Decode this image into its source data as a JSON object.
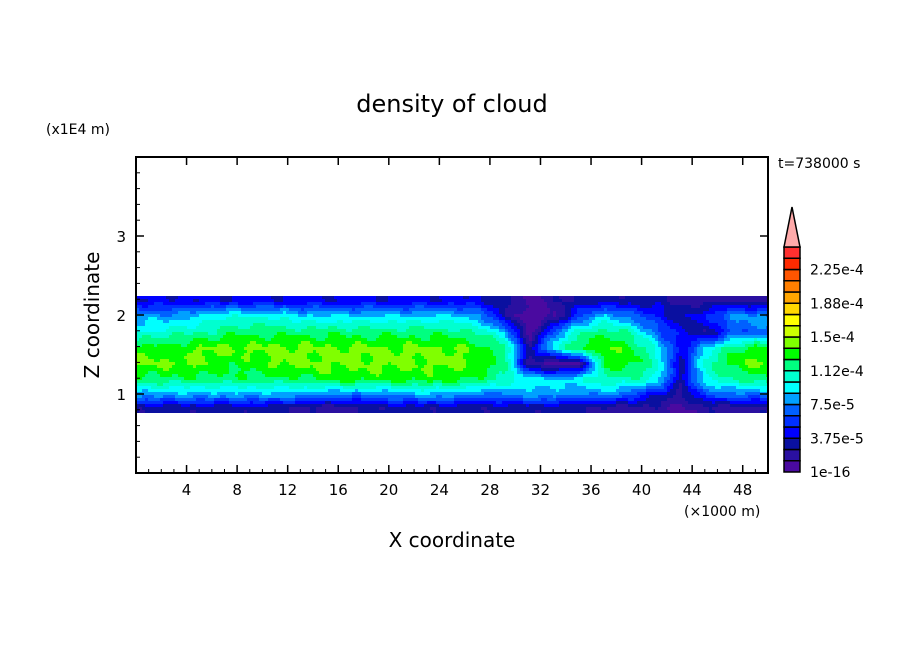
{
  "chart_data": {
    "type": "heatmap",
    "title": "density of cloud",
    "xlabel": "X coordinate",
    "ylabel": "Z coordinate",
    "x_unit_label": "(×1000 m)",
    "y_unit_label": "(x1E4 m)",
    "time_label": "t=738000 s",
    "xlim": [
      0,
      50
    ],
    "ylim": [
      0,
      4
    ],
    "x_ticks": [
      "4",
      "8",
      "12",
      "16",
      "20",
      "24",
      "28",
      "32",
      "36",
      "40",
      "44",
      "48"
    ],
    "x_tick_values": [
      4,
      8,
      12,
      16,
      20,
      24,
      28,
      32,
      36,
      40,
      44,
      48
    ],
    "y_ticks": [
      "1",
      "2",
      "3"
    ],
    "y_tick_values": [
      1,
      2,
      3
    ],
    "field_units_scale": 1e-05,
    "field_extent_z": [
      0.78,
      2.24
    ],
    "field_x": [
      1,
      3,
      5,
      7,
      9,
      11,
      13,
      15,
      17,
      19,
      21,
      23,
      25,
      27,
      29,
      31,
      33,
      35,
      37,
      39,
      41,
      43,
      45,
      47,
      49
    ],
    "field_z": [
      2.2,
      2.0,
      1.8,
      1.6,
      1.4,
      1.2,
      1.0,
      0.85
    ],
    "field_values_approx": [
      [
        4,
        4,
        4,
        4,
        4,
        4,
        4,
        4,
        4,
        4,
        4,
        4,
        4,
        4,
        3,
        1,
        2,
        3,
        3,
        3,
        3,
        2,
        2,
        2,
        2
      ],
      [
        8,
        8,
        9,
        10,
        10,
        10,
        9,
        9,
        9,
        9,
        9,
        9,
        9,
        8,
        3,
        0,
        1,
        6,
        9,
        7,
        5,
        3,
        5,
        8,
        8
      ],
      [
        10,
        11,
        11,
        12,
        12,
        12,
        12,
        12,
        12,
        12,
        12,
        12,
        12,
        11,
        9,
        0,
        7,
        11,
        12,
        11,
        7,
        4,
        2,
        6,
        7
      ],
      [
        13,
        13,
        14,
        14,
        14,
        14,
        14,
        14,
        14,
        14,
        14,
        14,
        14,
        13,
        12,
        3,
        10,
        13,
        14,
        13,
        10,
        4,
        9,
        12,
        13
      ],
      [
        14,
        14,
        14,
        13,
        13,
        14,
        14,
        14,
        14,
        14,
        14,
        14,
        14,
        14,
        12,
        2,
        0,
        1,
        13,
        13,
        11,
        3,
        11,
        13,
        14
      ],
      [
        12,
        12,
        12,
        12,
        12,
        12,
        12,
        13,
        13,
        13,
        13,
        13,
        13,
        12,
        11,
        10,
        9,
        10,
        11,
        11,
        10,
        3,
        10,
        11,
        12
      ],
      [
        8,
        8,
        8,
        8,
        8,
        8,
        8,
        7,
        7,
        7,
        8,
        8,
        8,
        7,
        7,
        8,
        8,
        7,
        8,
        6,
        4,
        2,
        6,
        7,
        7
      ],
      [
        3,
        3,
        3,
        3,
        3,
        3,
        2,
        2,
        2,
        3,
        3,
        3,
        3,
        3,
        3,
        3,
        3,
        3,
        2,
        2,
        2,
        1,
        2,
        2,
        2
      ]
    ],
    "colorbar": {
      "levels_step": 1.25e-05,
      "labels": [
        "1e-16",
        "3.75e-5",
        "7.5e-5",
        "1.12e-4",
        "1.5e-4",
        "1.88e-4",
        "2.25e-4"
      ],
      "colors": [
        "#4a0aa0",
        "#2a10a0",
        "#0a10a0",
        "#0000ff",
        "#0030ff",
        "#0060ff",
        "#00a0ff",
        "#00ffff",
        "#00ffd0",
        "#00ff80",
        "#00ff00",
        "#80ff00",
        "#ccff00",
        "#ffff00",
        "#ffd700",
        "#ffa500",
        "#ff7f00",
        "#ff5500",
        "#ff2a00",
        "#ff3030"
      ],
      "overflow_color": "#ffaaaa"
    }
  }
}
